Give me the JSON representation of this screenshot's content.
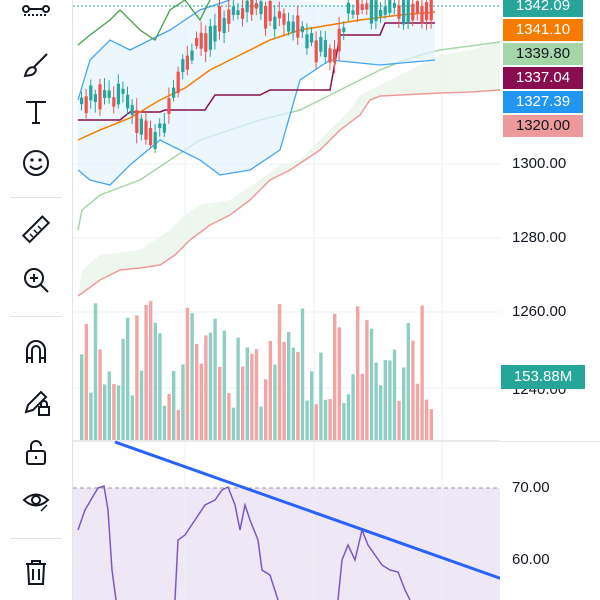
{
  "toolbar": {
    "tools": [
      "trend-lines",
      "brush",
      "text",
      "emoji",
      "ruler",
      "zoom-in",
      "magnet",
      "lock-drawings",
      "unlock",
      "visibility",
      "trash"
    ]
  },
  "price_axis": {
    "tags": [
      {
        "label": "1342.09",
        "color": "#26a69a"
      },
      {
        "label": "1341.10",
        "color": "#f57c00"
      },
      {
        "label": "1339.80",
        "color": "#a5d6a7",
        "text_color": "#131722"
      },
      {
        "label": "1337.04",
        "color": "#880e4f"
      },
      {
        "label": "1327.39",
        "color": "#2196f3"
      },
      {
        "label": "1320.00",
        "color": "#ef9a9a",
        "text_color": "#131722"
      }
    ],
    "ticks": [
      "1300.00",
      "1280.00",
      "1260.00",
      "1240.00"
    ],
    "volume_tag": {
      "label": "153.88M",
      "color": "#26a69a"
    }
  },
  "rsi_axis": {
    "ticks": [
      "70.00",
      "60.00"
    ]
  },
  "colors": {
    "up": "#26a69a",
    "down": "#ef5350",
    "rsi_line": "#7e57c2",
    "rsi_band": "#ede7f6",
    "trendline": "#2962ff"
  }
}
